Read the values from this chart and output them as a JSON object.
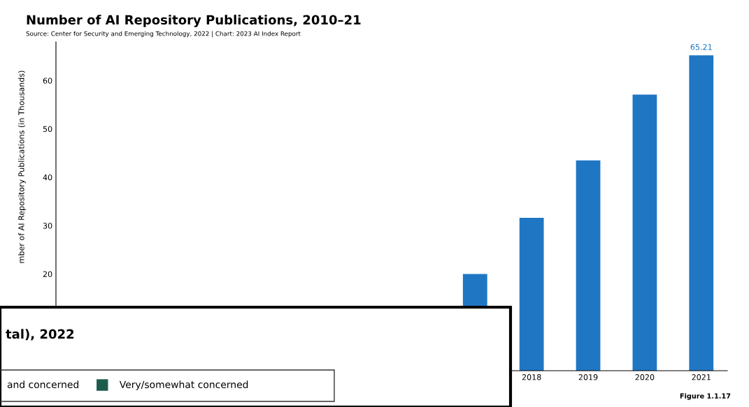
{
  "chart_data": [
    {
      "type": "bar",
      "title": "Number of AI Repository Publications, 2010–21",
      "subtitle": "Source: Center for Security and Emerging Technology, 2022 | Chart: 2023 AI Index Report",
      "ylabel": "mber of AI Repository Publications (in Thousands)",
      "categories": [
        null,
        null,
        null,
        null,
        null,
        null,
        null,
        null,
        "2018",
        "2019",
        "2020",
        "2021"
      ],
      "values": [
        null,
        null,
        null,
        null,
        null,
        null,
        null,
        20.0,
        31.6,
        43.5,
        57.1,
        65.21
      ],
      "value_labels": [
        null,
        null,
        null,
        null,
        null,
        null,
        null,
        null,
        null,
        null,
        null,
        "65.21"
      ],
      "color": "#1f77c4",
      "ylim": [
        0,
        68
      ],
      "yticks": [
        20,
        30,
        40,
        50,
        60
      ],
      "grid": false,
      "annotations": [
        "Figure 1.1.17"
      ]
    },
    {
      "type": "other",
      "title": "tal), 2022",
      "legend": "top left",
      "series": [
        {
          "name": "and concerned",
          "color": null
        },
        {
          "name": "Very/somewhat concerned",
          "color": "#1d5c4d"
        }
      ]
    }
  ]
}
